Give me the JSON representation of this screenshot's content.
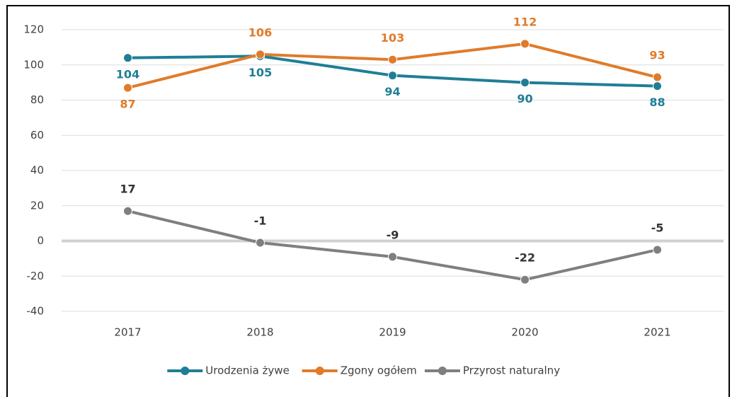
{
  "chart_data": {
    "type": "line",
    "categories": [
      "2017",
      "2018",
      "2019",
      "2020",
      "2021"
    ],
    "series": [
      {
        "name": "Urodzenia żywe",
        "color": "#1f7e96",
        "values": [
          104,
          105,
          94,
          90,
          88
        ]
      },
      {
        "name": "Zgony ogółem",
        "color": "#e07b2a",
        "values": [
          87,
          106,
          103,
          112,
          93
        ]
      },
      {
        "name": "Przyrost naturalny",
        "color": "#7f7f7f",
        "values": [
          17,
          -1,
          -9,
          -22,
          -5
        ]
      }
    ],
    "ylim": [
      -40,
      120
    ],
    "yticks": [
      -40,
      -20,
      0,
      20,
      40,
      60,
      80,
      100,
      120
    ],
    "grid": true,
    "legend": "bottom"
  }
}
